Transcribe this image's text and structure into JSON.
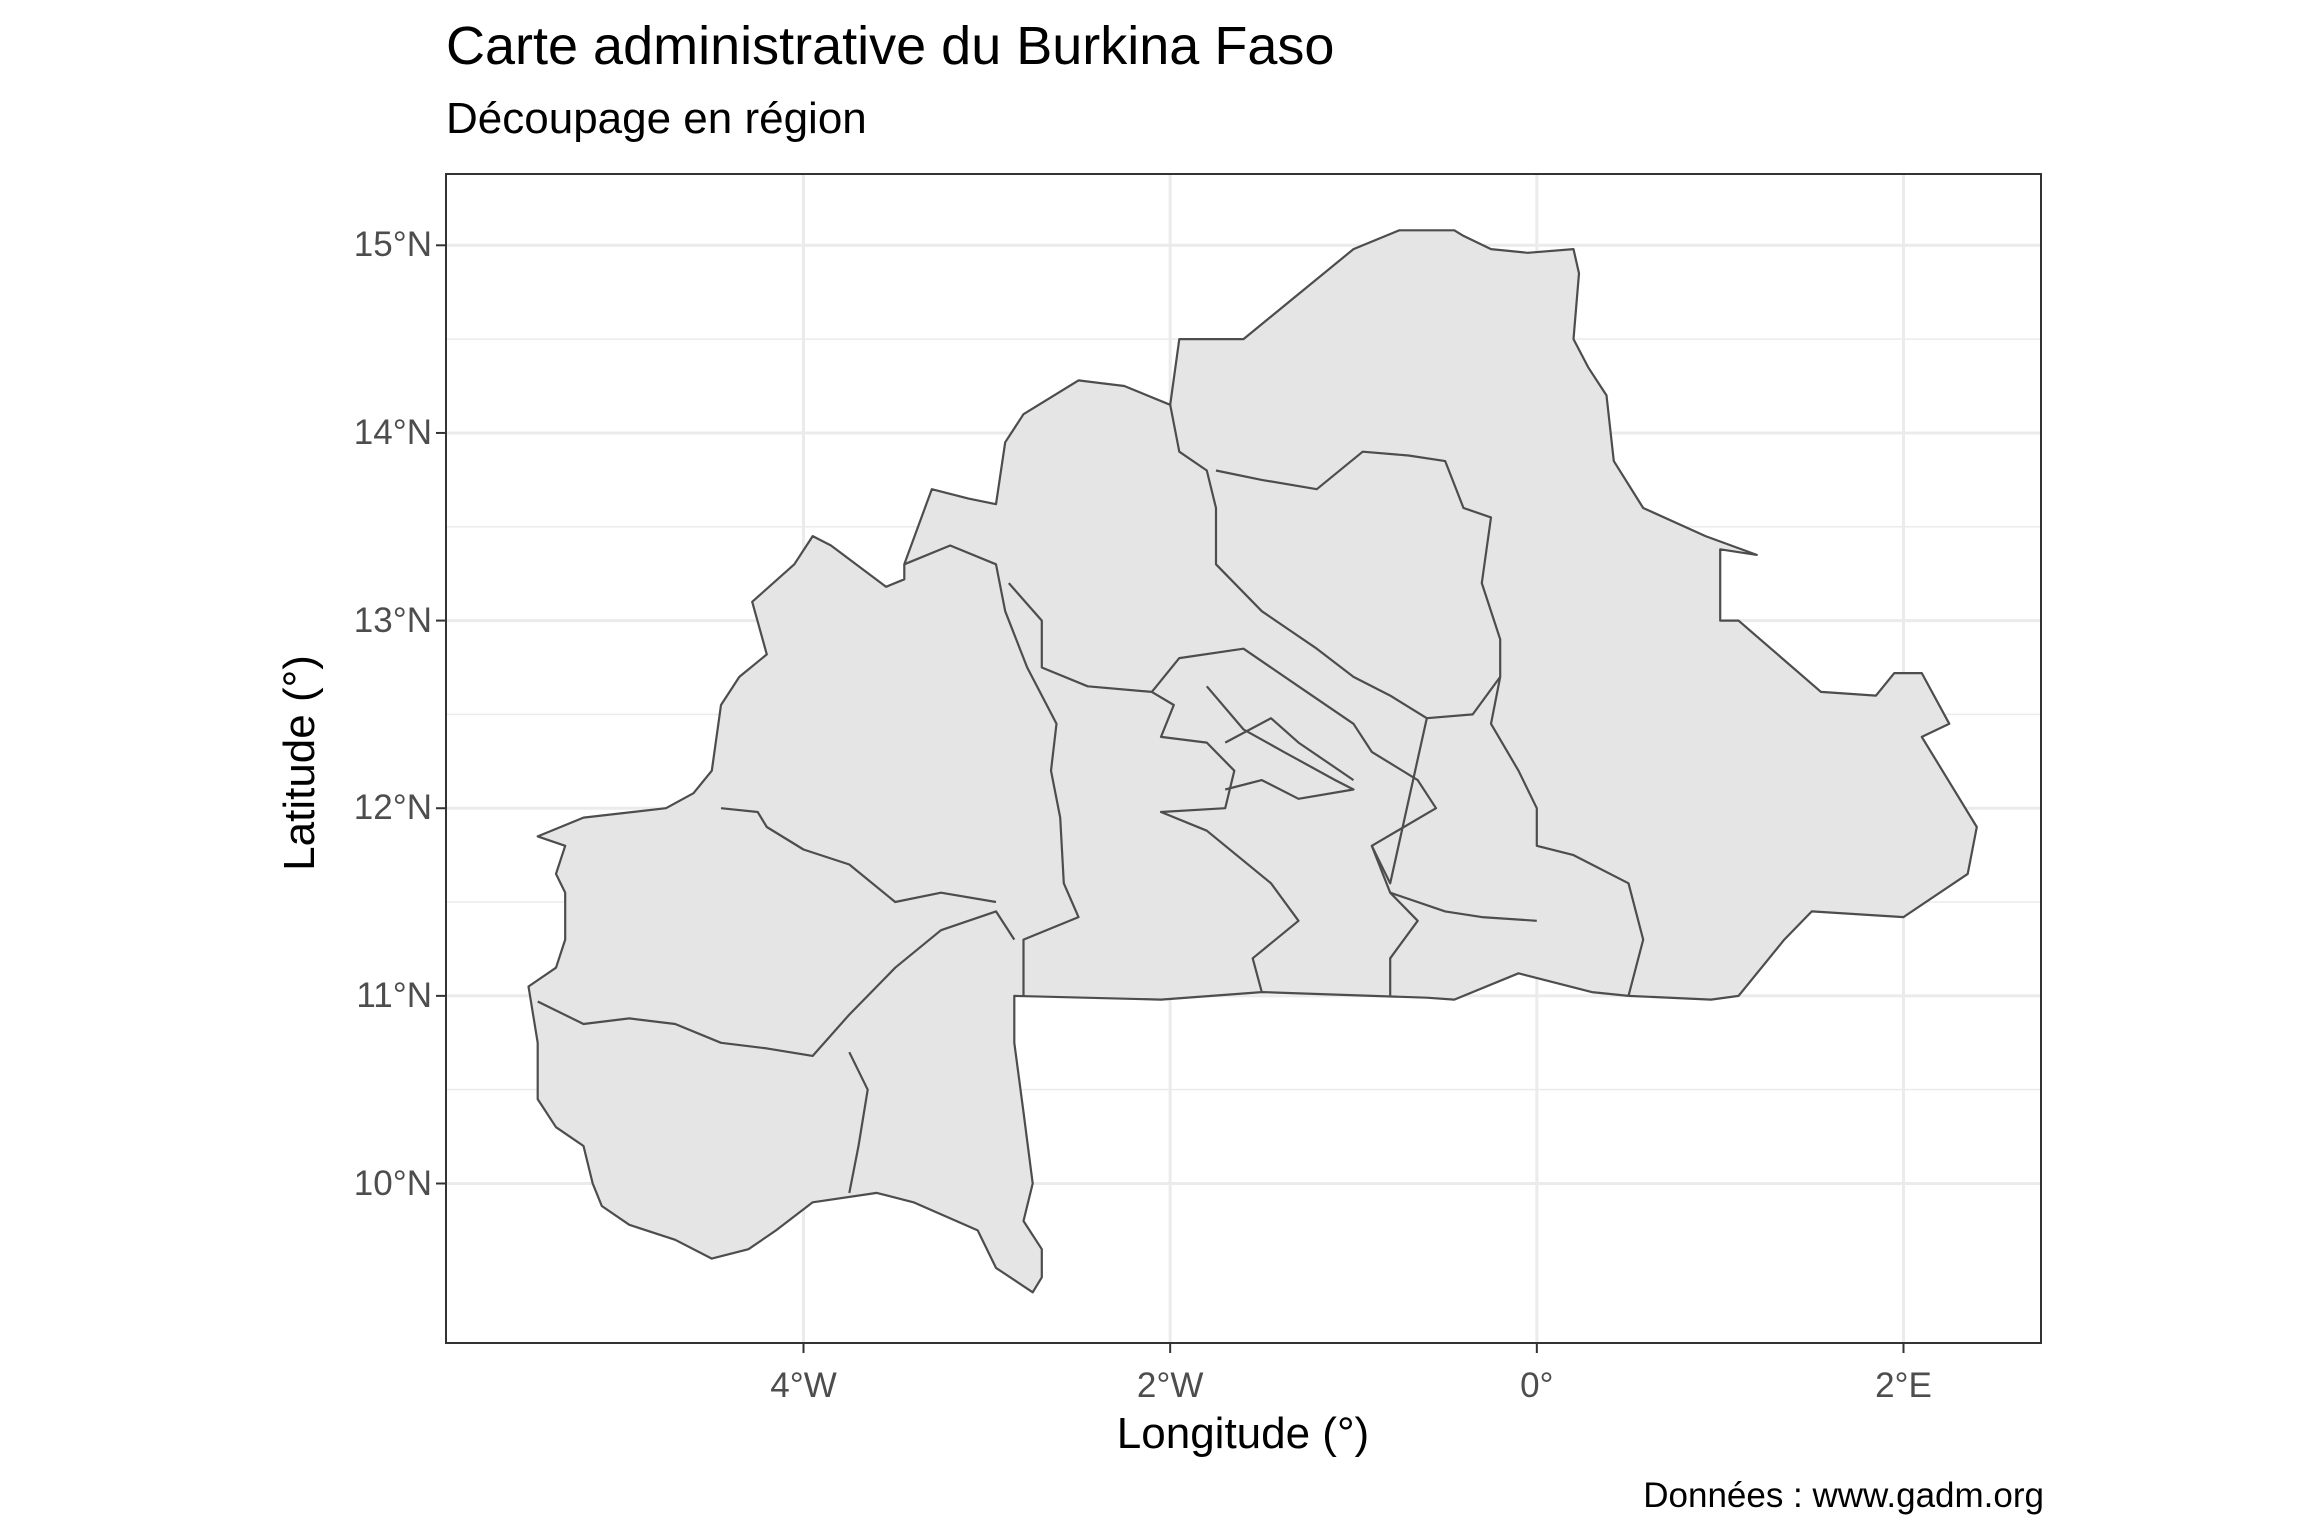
{
  "title": "Carte administrative du Burkina Faso",
  "subtitle": "Découpage en région",
  "caption": "Données : www.gadm.org",
  "colors": {
    "fill": "#e5e5e5",
    "stroke": "#4d4d4d",
    "grid": "#ebebeb",
    "panel_border": "#333333",
    "tick_text": "#4d4d4d"
  },
  "chart_data": {
    "type": "map",
    "title": "Carte administrative du Burkina Faso",
    "subtitle": "Découpage en région",
    "xlabel": "Longitude (°)",
    "ylabel": "Latitude (°)",
    "caption": "Données : www.gadm.org",
    "xlim": [
      -5.95,
      2.75
    ],
    "ylim": [
      9.15,
      15.38
    ],
    "grid": true,
    "x_ticks": [
      {
        "value": -4,
        "label": "4°W"
      },
      {
        "value": -2,
        "label": "2°W"
      },
      {
        "value": 0,
        "label": "0°"
      },
      {
        "value": 2,
        "label": "2°E"
      }
    ],
    "y_ticks": [
      {
        "value": 15,
        "label": "15°N"
      },
      {
        "value": 14,
        "label": "14°N"
      },
      {
        "value": 13,
        "label": "13°N"
      },
      {
        "value": 12,
        "label": "12°N"
      },
      {
        "value": 11,
        "label": "11°N"
      },
      {
        "value": 10,
        "label": "10°N"
      }
    ],
    "outline": [
      [
        -0.75,
        15.08
      ],
      [
        -0.45,
        15.08
      ],
      [
        -0.4,
        15.05
      ],
      [
        -0.25,
        14.98
      ],
      [
        -0.05,
        14.96
      ],
      [
        0.2,
        14.98
      ],
      [
        0.23,
        14.85
      ],
      [
        0.2,
        14.5
      ],
      [
        0.28,
        14.35
      ],
      [
        0.38,
        14.2
      ],
      [
        0.42,
        13.85
      ],
      [
        0.58,
        13.6
      ],
      [
        0.92,
        13.45
      ],
      [
        1.2,
        13.35
      ],
      [
        1.0,
        13.38
      ],
      [
        1.0,
        13.0
      ],
      [
        1.1,
        13.0
      ],
      [
        1.55,
        12.62
      ],
      [
        1.85,
        12.6
      ],
      [
        1.95,
        12.72
      ],
      [
        2.1,
        12.72
      ],
      [
        2.25,
        12.45
      ],
      [
        2.1,
        12.38
      ],
      [
        2.4,
        11.9
      ],
      [
        2.35,
        11.65
      ],
      [
        2.0,
        11.42
      ],
      [
        1.5,
        11.45
      ],
      [
        1.35,
        11.3
      ],
      [
        1.1,
        11.0
      ],
      [
        0.95,
        10.98
      ],
      [
        0.5,
        11.0
      ],
      [
        0.3,
        11.02
      ],
      [
        -0.1,
        11.12
      ],
      [
        -0.45,
        10.98
      ],
      [
        -0.6,
        10.99
      ],
      [
        -1.5,
        11.02
      ],
      [
        -2.05,
        10.98
      ],
      [
        -2.85,
        11.0
      ],
      [
        -2.85,
        10.75
      ],
      [
        -2.8,
        10.38
      ],
      [
        -2.75,
        10.0
      ],
      [
        -2.8,
        9.8
      ],
      [
        -2.7,
        9.65
      ],
      [
        -2.7,
        9.5
      ],
      [
        -2.75,
        9.42
      ],
      [
        -2.95,
        9.55
      ],
      [
        -3.05,
        9.75
      ],
      [
        -3.4,
        9.9
      ],
      [
        -3.6,
        9.95
      ],
      [
        -3.95,
        9.9
      ],
      [
        -4.15,
        9.75
      ],
      [
        -4.3,
        9.65
      ],
      [
        -4.5,
        9.6
      ],
      [
        -4.7,
        9.7
      ],
      [
        -4.95,
        9.78
      ],
      [
        -5.1,
        9.88
      ],
      [
        -5.15,
        10.0
      ],
      [
        -5.2,
        10.2
      ],
      [
        -5.35,
        10.3
      ],
      [
        -5.45,
        10.45
      ],
      [
        -5.45,
        10.75
      ],
      [
        -5.5,
        11.05
      ],
      [
        -5.35,
        11.15
      ],
      [
        -5.3,
        11.3
      ],
      [
        -5.3,
        11.55
      ],
      [
        -5.35,
        11.65
      ],
      [
        -5.3,
        11.8
      ],
      [
        -5.45,
        11.85
      ],
      [
        -5.2,
        11.95
      ],
      [
        -4.75,
        12.0
      ],
      [
        -4.6,
        12.08
      ],
      [
        -4.5,
        12.2
      ],
      [
        -4.45,
        12.55
      ],
      [
        -4.35,
        12.7
      ],
      [
        -4.2,
        12.82
      ],
      [
        -4.28,
        13.1
      ],
      [
        -4.05,
        13.3
      ],
      [
        -3.95,
        13.45
      ],
      [
        -3.85,
        13.4
      ],
      [
        -3.55,
        13.18
      ],
      [
        -3.45,
        13.22
      ],
      [
        -3.45,
        13.3
      ],
      [
        -3.3,
        13.7
      ],
      [
        -3.1,
        13.65
      ],
      [
        -2.95,
        13.62
      ],
      [
        -2.9,
        13.95
      ],
      [
        -2.8,
        14.1
      ],
      [
        -2.5,
        14.28
      ],
      [
        -2.25,
        14.25
      ],
      [
        -2.0,
        14.15
      ],
      [
        -1.95,
        14.5
      ],
      [
        -1.6,
        14.5
      ],
      [
        -1.35,
        14.7
      ],
      [
        -1.0,
        14.98
      ],
      [
        -0.75,
        15.08
      ]
    ],
    "regions": [
      {
        "points": [
          [
            -5.45,
            10.97
          ],
          [
            -5.2,
            10.85
          ],
          [
            -4.95,
            10.88
          ],
          [
            -4.7,
            10.85
          ],
          [
            -4.45,
            10.75
          ],
          [
            -4.2,
            10.72
          ],
          [
            -3.95,
            10.68
          ],
          [
            -3.75,
            10.9
          ],
          [
            -3.5,
            11.15
          ],
          [
            -3.25,
            11.35
          ],
          [
            -2.95,
            11.45
          ],
          [
            -2.85,
            11.3
          ]
        ]
      },
      {
        "points": [
          [
            -3.75,
            10.7
          ],
          [
            -3.65,
            10.5
          ],
          [
            -3.7,
            10.2
          ],
          [
            -3.75,
            9.95
          ]
        ]
      },
      {
        "points": [
          [
            -4.45,
            12.0
          ],
          [
            -4.25,
            11.98
          ],
          [
            -4.2,
            11.9
          ],
          [
            -4.0,
            11.78
          ],
          [
            -3.75,
            11.7
          ],
          [
            -3.5,
            11.5
          ],
          [
            -3.25,
            11.55
          ],
          [
            -2.95,
            11.5
          ]
        ]
      },
      {
        "points": [
          [
            -3.45,
            13.3
          ],
          [
            -3.2,
            13.4
          ],
          [
            -2.95,
            13.3
          ],
          [
            -2.9,
            13.05
          ],
          [
            -2.78,
            12.75
          ],
          [
            -2.62,
            12.45
          ],
          [
            -2.65,
            12.2
          ],
          [
            -2.6,
            11.95
          ],
          [
            -2.58,
            11.6
          ],
          [
            -2.5,
            11.42
          ],
          [
            -2.8,
            11.3
          ],
          [
            -2.8,
            11.0
          ]
        ]
      },
      {
        "points": [
          [
            -2.88,
            13.2
          ],
          [
            -2.7,
            13.0
          ],
          [
            -2.7,
            12.75
          ],
          [
            -2.45,
            12.65
          ],
          [
            -2.1,
            12.62
          ],
          [
            -1.98,
            12.55
          ],
          [
            -2.05,
            12.38
          ],
          [
            -1.8,
            12.35
          ],
          [
            -1.65,
            12.2
          ],
          [
            -1.7,
            12.0
          ],
          [
            -2.05,
            11.98
          ],
          [
            -1.8,
            11.88
          ],
          [
            -1.45,
            11.6
          ],
          [
            -1.3,
            11.4
          ],
          [
            -1.55,
            11.2
          ],
          [
            -1.5,
            11.02
          ]
        ]
      },
      {
        "points": [
          [
            -2.0,
            14.15
          ],
          [
            -1.95,
            13.9
          ],
          [
            -1.8,
            13.8
          ],
          [
            -1.75,
            13.6
          ],
          [
            -1.75,
            13.3
          ],
          [
            -1.5,
            13.05
          ],
          [
            -1.2,
            12.85
          ],
          [
            -1.0,
            12.7
          ],
          [
            -0.8,
            12.6
          ],
          [
            -0.6,
            12.48
          ],
          [
            -0.35,
            12.5
          ],
          [
            -0.2,
            12.7
          ]
        ]
      },
      {
        "points": [
          [
            -1.75,
            13.8
          ],
          [
            -1.5,
            13.75
          ],
          [
            -1.2,
            13.7
          ],
          [
            -0.95,
            13.9
          ],
          [
            -0.7,
            13.88
          ],
          [
            -0.5,
            13.85
          ],
          [
            -0.4,
            13.6
          ],
          [
            -0.25,
            13.55
          ],
          [
            -0.3,
            13.2
          ],
          [
            -0.2,
            12.9
          ],
          [
            -0.2,
            12.7
          ],
          [
            -0.25,
            12.45
          ],
          [
            -0.1,
            12.2
          ],
          [
            0.0,
            12.0
          ],
          [
            0.0,
            11.8
          ],
          [
            0.2,
            11.75
          ],
          [
            0.5,
            11.6
          ],
          [
            0.58,
            11.3
          ],
          [
            0.5,
            11.0
          ]
        ]
      },
      {
        "points": [
          [
            -2.1,
            12.62
          ],
          [
            -1.95,
            12.8
          ],
          [
            -1.6,
            12.85
          ],
          [
            -1.3,
            12.65
          ],
          [
            -1.0,
            12.45
          ],
          [
            -0.9,
            12.3
          ],
          [
            -0.65,
            12.15
          ],
          [
            -0.55,
            12.0
          ],
          [
            -0.9,
            11.8
          ],
          [
            -0.8,
            11.55
          ],
          [
            -0.65,
            11.4
          ],
          [
            -0.8,
            11.2
          ],
          [
            -0.8,
            11.0
          ]
        ]
      },
      {
        "points": [
          [
            -1.8,
            12.65
          ],
          [
            -1.6,
            12.42
          ],
          [
            -1.38,
            12.3
          ],
          [
            -1.1,
            12.15
          ],
          [
            -1.0,
            12.1
          ],
          [
            -1.3,
            12.05
          ],
          [
            -1.5,
            12.15
          ],
          [
            -1.7,
            12.1
          ]
        ]
      },
      {
        "points": [
          [
            -1.7,
            12.35
          ],
          [
            -1.45,
            12.48
          ],
          [
            -1.3,
            12.35
          ],
          [
            -1.0,
            12.15
          ]
        ]
      },
      {
        "points": [
          [
            -0.6,
            12.48
          ],
          [
            -0.8,
            11.6
          ],
          [
            -0.9,
            11.8
          ]
        ]
      },
      {
        "points": [
          [
            -0.8,
            11.55
          ],
          [
            -0.5,
            11.45
          ],
          [
            -0.3,
            11.42
          ],
          [
            0.0,
            11.4
          ]
        ]
      }
    ]
  }
}
